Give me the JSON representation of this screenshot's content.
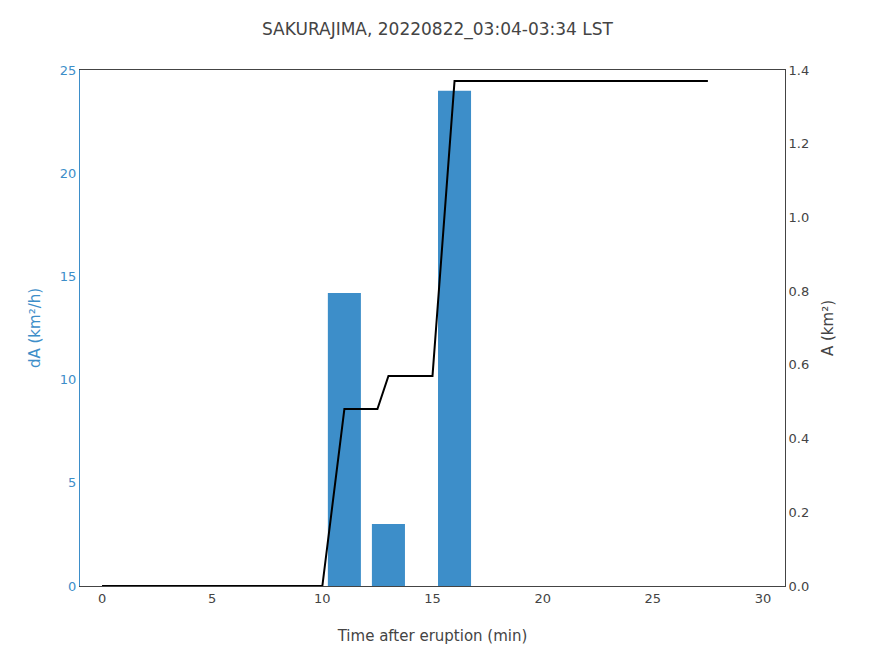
{
  "chart_data": {
    "type": "bar",
    "title": "SAKURAJIMA, 20220822_03:04-03:34 LST",
    "x_label": "Time after eruption (min)",
    "y_label": "dA (km²/h)",
    "y2_label": "A (km²)",
    "series": [
      {
        "type": "bar",
        "x": [
          10.25,
          12.25,
          15.25
        ],
        "values": [
          14.2,
          3.0,
          24.0
        ],
        "width": 1.5,
        "color": "#3d8ec9"
      },
      {
        "type": "line",
        "axis": "y2",
        "x": [
          0,
          10.0,
          11.0,
          12.5,
          13.0,
          15.0,
          16.0,
          17.0,
          27.5
        ],
        "values": [
          0.0,
          0.0,
          0.48,
          0.48,
          0.57,
          0.57,
          1.37,
          1.37,
          1.37
        ],
        "color": "#000000"
      }
    ],
    "xlim": [
      -1,
      31
    ],
    "xticks": [
      0,
      5,
      10,
      15,
      20,
      25,
      30
    ],
    "ylim": [
      0,
      25
    ],
    "yticks": [
      0,
      5,
      10,
      15,
      20,
      25
    ],
    "y2lim": [
      0,
      1.4
    ],
    "y2ticks": [
      {
        "value": 0,
        "label": "0.0"
      },
      0.2,
      0.4,
      0.6,
      0.8,
      {
        "value": 1.0,
        "label": "1.0"
      },
      1.2,
      1.4
    ],
    "grid": false
  }
}
